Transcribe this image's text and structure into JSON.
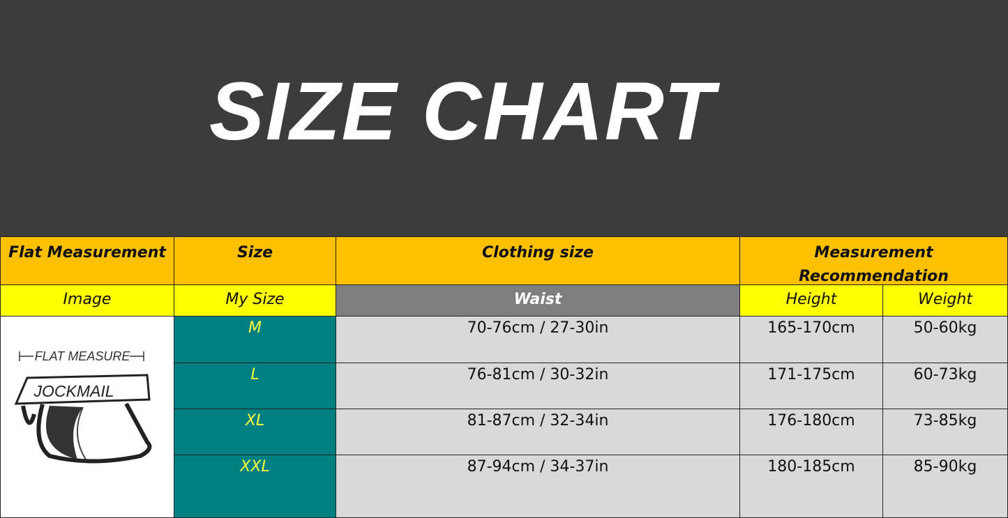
{
  "title": "SIZE CHART",
  "headers": {
    "flat": "Flat Measurement",
    "size": "Size",
    "clothing": "Clothing size",
    "measurement": "Measurement Recommendation"
  },
  "subheaders": {
    "image": "Image",
    "my_size": "My Size",
    "waist": "Waist",
    "height": "Height",
    "weight": "Weight"
  },
  "illustration": {
    "caption": "FLAT MEASURE",
    "brand": "JOCKMAIL"
  },
  "rows": [
    {
      "size": "M",
      "waist": "70-76cm / 27-30in",
      "height": "165-170cm",
      "weight": "50-60kg"
    },
    {
      "size": "L",
      "waist": "76-81cm / 30-32in",
      "height": "171-175cm",
      "weight": "60-73kg"
    },
    {
      "size": "XL",
      "waist": "81-87cm / 32-34in",
      "height": "176-180cm",
      "weight": "73-85kg"
    },
    {
      "size": "XXL",
      "waist": "87-94cm / 34-37in",
      "height": "180-185cm",
      "weight": "85-90kg"
    }
  ]
}
